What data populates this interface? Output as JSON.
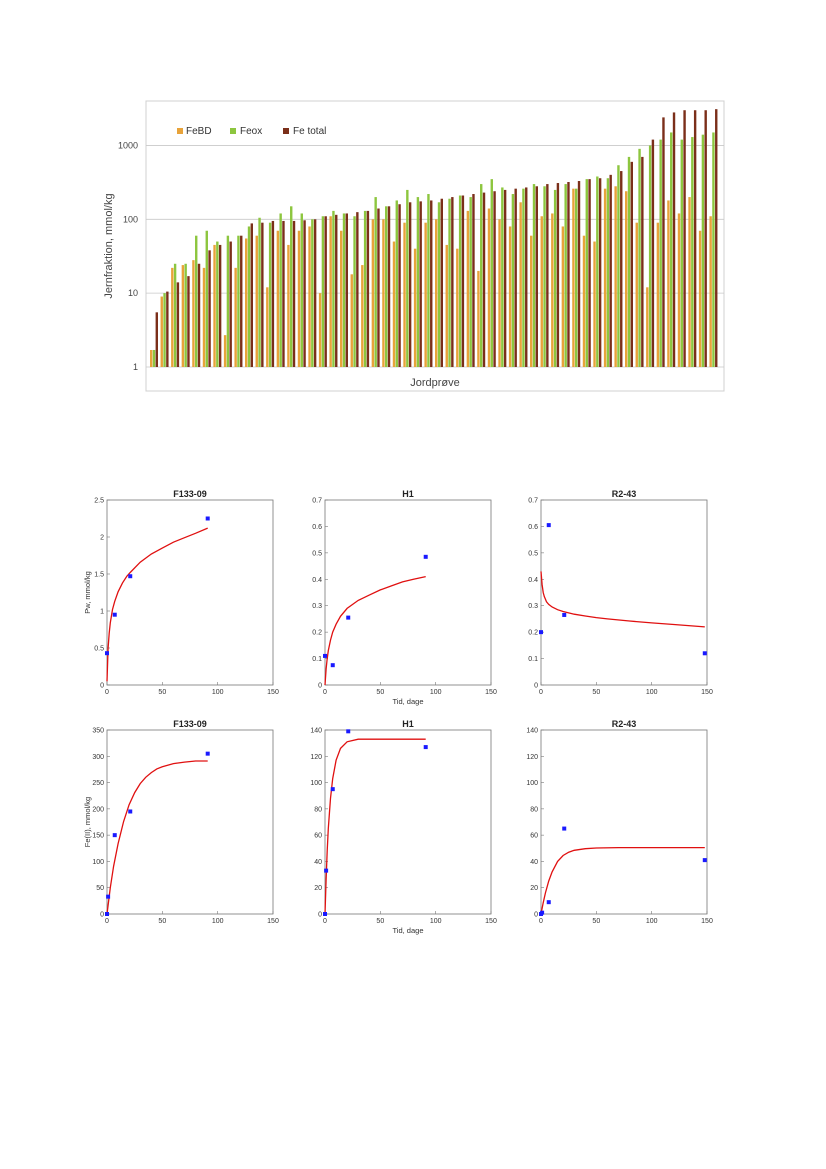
{
  "chart_data": [
    {
      "type": "bar",
      "xlabel": "Jordprøve",
      "ylabel": "Jernfraktion, mmol/kg",
      "yscale": "log",
      "ylim": [
        1,
        4000
      ],
      "yticks": [
        "1",
        "10",
        "100",
        "1000"
      ],
      "grid": true,
      "legend_placement": "top-left",
      "series": [
        {
          "name": "FeBD",
          "color": "#e8a33a",
          "values": [
            1.7,
            9,
            22,
            24,
            28,
            22,
            45,
            2.7,
            22,
            55,
            60,
            12,
            70,
            45,
            70,
            80,
            10,
            110,
            70,
            18,
            24,
            100,
            100,
            50,
            90,
            40,
            90,
            100,
            45,
            40,
            130,
            20,
            140,
            100,
            80,
            170,
            60,
            110,
            120,
            80,
            260,
            60,
            50,
            260,
            280,
            240,
            90,
            12,
            90,
            180,
            120,
            200,
            70,
            110
          ]
        },
        {
          "name": "Feox",
          "color": "#8dc63f",
          "values": [
            1.7,
            10,
            25,
            25,
            60,
            70,
            50,
            60,
            60,
            80,
            105,
            90,
            120,
            150,
            120,
            100,
            110,
            130,
            120,
            110,
            130,
            200,
            150,
            180,
            250,
            200,
            220,
            170,
            190,
            210,
            200,
            300,
            350,
            270,
            220,
            260,
            300,
            280,
            250,
            300,
            260,
            350,
            380,
            360,
            540,
            700,
            900,
            1000,
            1200,
            1500,
            1200,
            1300,
            1400,
            1500
          ]
        },
        {
          "name": "Fe total",
          "color": "#7b2f1a",
          "values": [
            5.5,
            10.5,
            14,
            17,
            25,
            38,
            45,
            50,
            60,
            88,
            90,
            95,
            95,
            95,
            97,
            100,
            110,
            115,
            120,
            125,
            130,
            140,
            150,
            160,
            170,
            175,
            180,
            190,
            200,
            210,
            220,
            230,
            240,
            250,
            260,
            270,
            280,
            300,
            310,
            320,
            330,
            350,
            360,
            400,
            450,
            600,
            700,
            1200,
            2400,
            2800,
            3000,
            3000,
            3000,
            3100
          ]
        }
      ]
    },
    {
      "type": "scatter",
      "title": "F133-09",
      "xlim": [
        0,
        150
      ],
      "ylim": [
        0,
        2.5
      ],
      "xticks": [
        "0",
        "50",
        "100",
        "150"
      ],
      "yticks": [
        "0",
        "0.5",
        "1",
        "1.5",
        "2",
        "2.5"
      ],
      "ylabel": "Pw, mmol/kg",
      "xlabel": "",
      "points": {
        "x": [
          0,
          7,
          21,
          91
        ],
        "y": [
          0.43,
          0.95,
          1.47,
          2.25
        ]
      },
      "fit": {
        "x": [
          0,
          1,
          2,
          3,
          5,
          7,
          10,
          14,
          18,
          21,
          30,
          40,
          50,
          60,
          70,
          80,
          91
        ],
        "y": [
          0.05,
          0.5,
          0.7,
          0.84,
          1.02,
          1.13,
          1.26,
          1.38,
          1.47,
          1.52,
          1.66,
          1.77,
          1.85,
          1.93,
          1.99,
          2.05,
          2.12
        ]
      }
    },
    {
      "type": "scatter",
      "title": "H1",
      "xlim": [
        0,
        150
      ],
      "ylim": [
        0,
        0.7
      ],
      "xticks": [
        "0",
        "50",
        "100",
        "150"
      ],
      "yticks": [
        "0",
        "0.1",
        "0.2",
        "0.3",
        "0.4",
        "0.5",
        "0.6",
        "0.7"
      ],
      "xlabel": "Tid, dage",
      "ylabel": "",
      "points": {
        "x": [
          0,
          7,
          21,
          91
        ],
        "y": [
          0.11,
          0.075,
          0.255,
          0.485
        ]
      },
      "fit": {
        "x": [
          0,
          1,
          2,
          3,
          5,
          7,
          10,
          14,
          20,
          30,
          40,
          50,
          60,
          70,
          80,
          91
        ],
        "y": [
          0.0,
          0.06,
          0.1,
          0.13,
          0.17,
          0.2,
          0.23,
          0.26,
          0.29,
          0.32,
          0.34,
          0.36,
          0.375,
          0.39,
          0.4,
          0.41
        ]
      }
    },
    {
      "type": "scatter",
      "title": "R2-43",
      "xlim": [
        0,
        150
      ],
      "ylim": [
        0,
        0.7
      ],
      "xticks": [
        "0",
        "50",
        "100",
        "150"
      ],
      "yticks": [
        "0",
        "0.1",
        "0.2",
        "0.3",
        "0.4",
        "0.5",
        "0.6",
        "0.7"
      ],
      "xlabel": "",
      "ylabel": "",
      "points": {
        "x": [
          0,
          7,
          21,
          148
        ],
        "y": [
          0.2,
          0.605,
          0.265,
          0.12
        ]
      },
      "fit": {
        "x": [
          0,
          1,
          2,
          3,
          5,
          7,
          10,
          15,
          20,
          30,
          40,
          50,
          60,
          80,
          100,
          120,
          148
        ],
        "y": [
          0.43,
          0.38,
          0.35,
          0.335,
          0.315,
          0.305,
          0.295,
          0.285,
          0.278,
          0.268,
          0.261,
          0.255,
          0.25,
          0.242,
          0.235,
          0.229,
          0.22
        ]
      }
    },
    {
      "type": "scatter",
      "title": "F133-09",
      "xlim": [
        0,
        150
      ],
      "ylim": [
        0,
        350
      ],
      "xticks": [
        "0",
        "50",
        "100",
        "150"
      ],
      "yticks": [
        "0",
        "50",
        "100",
        "150",
        "200",
        "250",
        "300",
        "350"
      ],
      "ylabel": "Fe(II), mmol/kg",
      "xlabel": "",
      "points": {
        "x": [
          0,
          1,
          7,
          21,
          91
        ],
        "y": [
          0,
          33,
          150,
          195,
          305
        ]
      },
      "fit": {
        "x": [
          0,
          3,
          6,
          10,
          15,
          20,
          25,
          30,
          35,
          40,
          45,
          50,
          60,
          70,
          80,
          91
        ],
        "y": [
          0,
          50,
          91,
          134,
          176,
          208,
          231,
          248,
          260,
          269,
          276,
          280,
          286,
          289,
          291,
          291
        ]
      }
    },
    {
      "type": "scatter",
      "title": "H1",
      "xlim": [
        0,
        150
      ],
      "ylim": [
        0,
        140
      ],
      "xticks": [
        "0",
        "50",
        "100",
        "150"
      ],
      "yticks": [
        "0",
        "20",
        "40",
        "60",
        "80",
        "100",
        "120",
        "140"
      ],
      "xlabel": "Tid, dage",
      "ylabel": "",
      "points": {
        "x": [
          0,
          1,
          7,
          21,
          91
        ],
        "y": [
          0,
          33,
          95,
          139,
          127
        ]
      },
      "fit": {
        "x": [
          0,
          1,
          2,
          3,
          5,
          7,
          10,
          14,
          20,
          30,
          40,
          60,
          91
        ],
        "y": [
          0,
          26,
          48,
          65,
          88,
          103,
          117,
          126,
          131,
          133,
          133,
          133,
          133
        ]
      }
    },
    {
      "type": "scatter",
      "title": "R2-43",
      "xlim": [
        0,
        150
      ],
      "ylim": [
        0,
        140
      ],
      "xticks": [
        "0",
        "50",
        "100",
        "150"
      ],
      "yticks": [
        "0",
        "20",
        "40",
        "60",
        "80",
        "100",
        "120",
        "140"
      ],
      "xlabel": "",
      "ylabel": "",
      "points": {
        "x": [
          0,
          1,
          7,
          21,
          148
        ],
        "y": [
          0,
          1,
          9,
          65,
          41
        ]
      },
      "fit": {
        "x": [
          0,
          2,
          4,
          7,
          10,
          15,
          20,
          25,
          30,
          40,
          50,
          70,
          100,
          148
        ],
        "y": [
          0,
          8.5,
          16,
          25,
          32,
          40,
          44.5,
          47,
          48.5,
          49.7,
          50.2,
          50.5,
          50.5,
          50.5
        ]
      }
    }
  ]
}
